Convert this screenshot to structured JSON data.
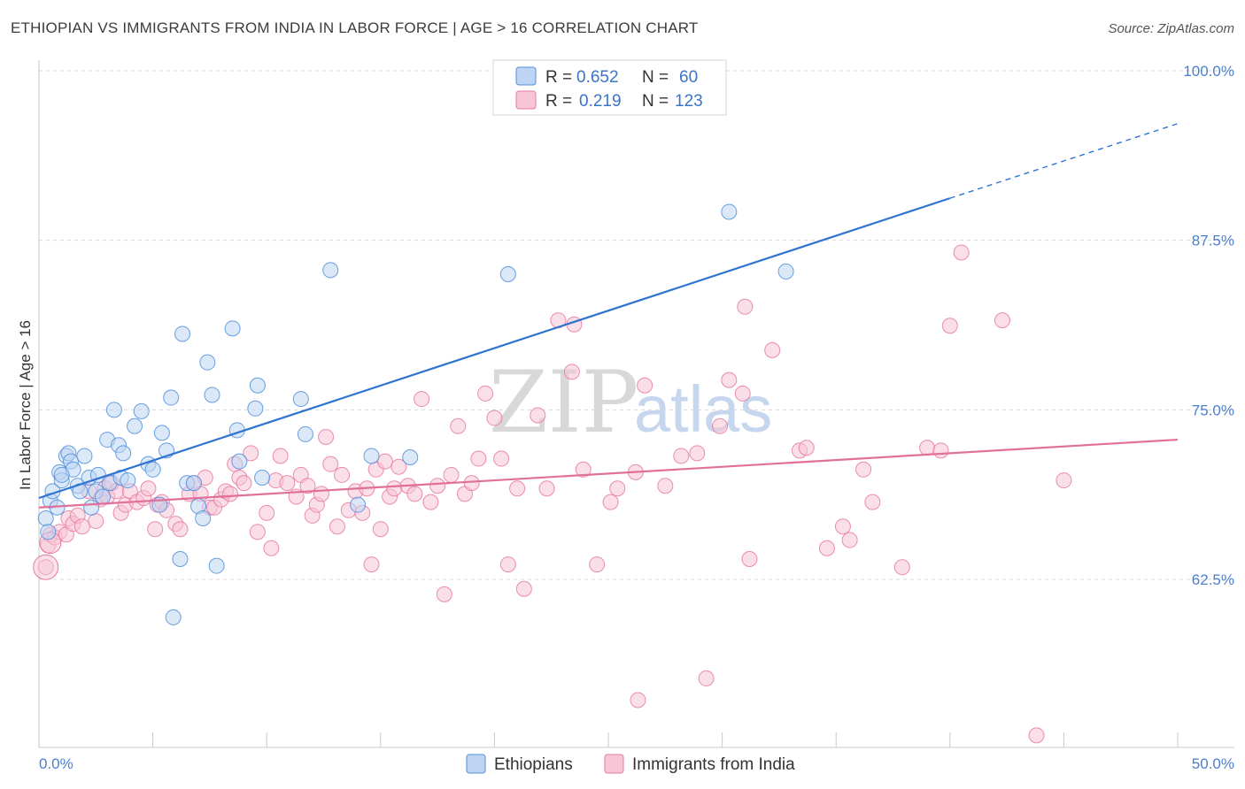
{
  "title": "ETHIOPIAN VS IMMIGRANTS FROM INDIA IN LABOR FORCE | AGE > 16 CORRELATION CHART",
  "source": "Source: ZipAtlas.com",
  "watermark": {
    "zip": "ZIP",
    "atlas": "atlas"
  },
  "colors": {
    "blue": "#4f8fdc",
    "blue_fill": "#bdd5f3",
    "blue_line": "#2f74d0",
    "pink": "#e879a1",
    "pink_fill": "#f7c5d6",
    "pink_line": "#e0709a",
    "grid": "#d9d9d9",
    "tick_label": "#4a7fd0"
  },
  "legend": {
    "rows": [
      {
        "r_label": "R =",
        "r_value": "0.652",
        "n_label": "N =",
        "n_value": "60"
      },
      {
        "r_label": "R =",
        "r_value": "0.219",
        "n_label": "N =",
        "n_value": "123"
      }
    ]
  },
  "chart_data": {
    "type": "scatter",
    "title": "ETHIOPIAN VS IMMIGRANTS FROM INDIA IN LABOR FORCE | AGE > 16 CORRELATION CHART",
    "xlabel": "",
    "ylabel": "In Labor Force | Age > 16",
    "xlim": [
      0,
      50
    ],
    "ylim": [
      50.5,
      102
    ],
    "x_tick_labels": [
      "0.0%",
      "50.0%"
    ],
    "y_ticks": [
      62.5,
      75.0,
      87.5,
      100.0
    ],
    "y_tick_labels": [
      "62.5%",
      "75.0%",
      "87.5%",
      "100.0%"
    ],
    "series": [
      {
        "name": "Ethiopians",
        "color": "#4f8fdc",
        "trend": {
          "x0": 0,
          "y0": 68.5,
          "x1": 40,
          "y1": 90.6,
          "dash_to_x": 50,
          "dash_to_y": 96.1
        },
        "points": [
          [
            0.3,
            67.0
          ],
          [
            0.4,
            66.0
          ],
          [
            0.5,
            68.3
          ],
          [
            0.6,
            69.0
          ],
          [
            0.8,
            67.8
          ],
          [
            0.9,
            70.4
          ],
          [
            1.0,
            69.8
          ],
          [
            1.2,
            71.6
          ],
          [
            1.3,
            71.8
          ],
          [
            1.4,
            71.2
          ],
          [
            1.5,
            70.6
          ],
          [
            1.7,
            69.4
          ],
          [
            1.8,
            69.0
          ],
          [
            2.0,
            71.6
          ],
          [
            2.2,
            70.0
          ],
          [
            2.3,
            67.8
          ],
          [
            2.5,
            69.0
          ],
          [
            2.6,
            70.2
          ],
          [
            2.8,
            68.6
          ],
          [
            3.0,
            72.8
          ],
          [
            3.1,
            69.6
          ],
          [
            3.3,
            75.0
          ],
          [
            3.5,
            72.4
          ],
          [
            3.6,
            70.0
          ],
          [
            3.7,
            71.8
          ],
          [
            3.9,
            69.8
          ],
          [
            4.2,
            73.8
          ],
          [
            4.5,
            74.9
          ],
          [
            4.8,
            71.0
          ],
          [
            5.0,
            70.6
          ],
          [
            5.3,
            68.0
          ],
          [
            5.4,
            73.3
          ],
          [
            5.6,
            72.0
          ],
          [
            5.8,
            75.9
          ],
          [
            6.2,
            64.0
          ],
          [
            6.3,
            80.6
          ],
          [
            6.5,
            69.6
          ],
          [
            6.8,
            69.6
          ],
          [
            7.0,
            67.9
          ],
          [
            7.2,
            67.0
          ],
          [
            7.4,
            78.5
          ],
          [
            7.6,
            76.1
          ],
          [
            7.8,
            63.5
          ],
          [
            8.5,
            81.0
          ],
          [
            8.7,
            73.5
          ],
          [
            8.8,
            71.2
          ],
          [
            9.5,
            75.1
          ],
          [
            9.6,
            76.8
          ],
          [
            9.8,
            70.0
          ],
          [
            11.5,
            75.8
          ],
          [
            11.7,
            73.2
          ],
          [
            12.8,
            85.3
          ],
          [
            14.0,
            68.0
          ],
          [
            14.6,
            71.6
          ],
          [
            16.3,
            71.5
          ],
          [
            20.6,
            85.0
          ],
          [
            30.3,
            89.6
          ],
          [
            32.8,
            85.2
          ],
          [
            5.9,
            59.7
          ],
          [
            1.0,
            70.2
          ]
        ]
      },
      {
        "name": "Immigrants from India",
        "color": "#e879a1",
        "trend": {
          "x0": 0,
          "y0": 67.8,
          "x1": 50,
          "y1": 72.8
        },
        "points": [
          [
            0.3,
            63.4
          ],
          [
            0.4,
            65.0
          ],
          [
            0.5,
            65.8
          ],
          [
            0.7,
            65.6
          ],
          [
            0.9,
            66.0
          ],
          [
            1.2,
            65.8
          ],
          [
            1.3,
            67.0
          ],
          [
            1.5,
            66.6
          ],
          [
            1.7,
            67.2
          ],
          [
            1.9,
            66.4
          ],
          [
            2.2,
            69.0
          ],
          [
            2.5,
            66.8
          ],
          [
            2.7,
            68.4
          ],
          [
            2.9,
            69.2
          ],
          [
            3.0,
            68.6
          ],
          [
            3.2,
            69.6
          ],
          [
            3.4,
            69.0
          ],
          [
            3.6,
            67.4
          ],
          [
            3.8,
            68.0
          ],
          [
            4.0,
            69.0
          ],
          [
            4.3,
            68.2
          ],
          [
            4.6,
            68.5
          ],
          [
            4.8,
            69.2
          ],
          [
            5.1,
            66.2
          ],
          [
            5.2,
            68.0
          ],
          [
            5.4,
            68.2
          ],
          [
            5.6,
            67.6
          ],
          [
            6.0,
            66.6
          ],
          [
            6.2,
            66.2
          ],
          [
            6.6,
            68.8
          ],
          [
            6.8,
            69.6
          ],
          [
            7.1,
            68.8
          ],
          [
            7.3,
            70.0
          ],
          [
            7.5,
            67.8
          ],
          [
            7.7,
            67.8
          ],
          [
            8.0,
            68.4
          ],
          [
            8.2,
            69.0
          ],
          [
            8.4,
            68.8
          ],
          [
            8.6,
            71.0
          ],
          [
            8.8,
            70.0
          ],
          [
            9.0,
            69.6
          ],
          [
            9.3,
            71.8
          ],
          [
            9.6,
            66.0
          ],
          [
            10.0,
            67.4
          ],
          [
            10.2,
            64.8
          ],
          [
            10.4,
            69.8
          ],
          [
            10.6,
            71.6
          ],
          [
            10.9,
            69.6
          ],
          [
            11.3,
            68.6
          ],
          [
            11.5,
            70.2
          ],
          [
            11.8,
            69.4
          ],
          [
            12.0,
            67.2
          ],
          [
            12.2,
            68.0
          ],
          [
            12.4,
            68.8
          ],
          [
            12.6,
            73.0
          ],
          [
            12.8,
            71.0
          ],
          [
            13.1,
            66.4
          ],
          [
            13.3,
            70.2
          ],
          [
            13.6,
            67.6
          ],
          [
            13.9,
            69.0
          ],
          [
            14.2,
            67.4
          ],
          [
            14.4,
            69.2
          ],
          [
            14.6,
            63.6
          ],
          [
            14.8,
            70.6
          ],
          [
            15.0,
            66.2
          ],
          [
            15.2,
            71.2
          ],
          [
            15.4,
            68.6
          ],
          [
            15.6,
            69.2
          ],
          [
            15.8,
            70.8
          ],
          [
            16.2,
            69.4
          ],
          [
            16.5,
            68.8
          ],
          [
            16.8,
            75.8
          ],
          [
            17.2,
            68.2
          ],
          [
            17.5,
            69.4
          ],
          [
            17.8,
            61.4
          ],
          [
            18.1,
            70.2
          ],
          [
            18.4,
            73.8
          ],
          [
            18.7,
            68.8
          ],
          [
            19.0,
            69.6
          ],
          [
            19.3,
            71.4
          ],
          [
            19.6,
            76.2
          ],
          [
            20.0,
            74.4
          ],
          [
            20.3,
            71.4
          ],
          [
            20.6,
            63.6
          ],
          [
            21.0,
            69.2
          ],
          [
            21.3,
            61.8
          ],
          [
            21.9,
            74.6
          ],
          [
            22.3,
            69.2
          ],
          [
            22.8,
            81.6
          ],
          [
            23.4,
            77.8
          ],
          [
            23.9,
            70.6
          ],
          [
            24.5,
            63.6
          ],
          [
            25.1,
            68.2
          ],
          [
            25.4,
            69.2
          ],
          [
            26.2,
            70.4
          ],
          [
            26.3,
            53.6
          ],
          [
            26.6,
            76.8
          ],
          [
            27.5,
            69.4
          ],
          [
            28.2,
            71.6
          ],
          [
            28.9,
            71.8
          ],
          [
            29.3,
            55.2
          ],
          [
            29.9,
            73.8
          ],
          [
            30.3,
            77.2
          ],
          [
            30.9,
            76.2
          ],
          [
            31.0,
            82.6
          ],
          [
            31.2,
            64.0
          ],
          [
            32.2,
            79.4
          ],
          [
            33.4,
            72.0
          ],
          [
            33.7,
            72.2
          ],
          [
            34.6,
            64.8
          ],
          [
            35.3,
            66.4
          ],
          [
            35.6,
            65.4
          ],
          [
            36.2,
            70.6
          ],
          [
            36.6,
            68.2
          ],
          [
            37.9,
            63.4
          ],
          [
            39.0,
            72.2
          ],
          [
            39.6,
            72.0
          ],
          [
            40.0,
            81.2
          ],
          [
            40.5,
            86.6
          ],
          [
            42.3,
            81.6
          ],
          [
            43.8,
            51.0
          ],
          [
            45.0,
            69.8
          ],
          [
            23.5,
            81.3
          ]
        ]
      }
    ]
  },
  "bottom_legend": {
    "items": [
      "Ethiopians",
      "Immigrants from India"
    ]
  }
}
